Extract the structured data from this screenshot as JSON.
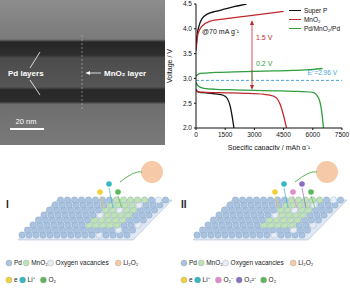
{
  "chart_data": {
    "type": "line",
    "x_label": "Specific capacity / mAh g⁻¹",
    "y_label": "Voltage / V",
    "xlim": [
      0,
      7500
    ],
    "xticks": [
      0,
      1500,
      3000,
      4500,
      6000,
      7500
    ],
    "ylim": [
      2,
      4.5
    ],
    "yticks": [
      {
        "value": 2,
        "label": "2.0"
      },
      2.5,
      {
        "value": 3,
        "label": "3.0"
      },
      3.5,
      {
        "value": 4,
        "label": "4.0"
      },
      4.5
    ],
    "legend": "upper right",
    "series": [
      {
        "name": "Super P",
        "color": "#111111",
        "curves": [
          {
            "x": [
              0,
              50,
              200,
              500,
              1000,
              1400,
              1600,
              1750,
              1850,
              1950
            ],
            "values": [
              2.78,
              2.74,
              2.72,
              2.71,
              2.69,
              2.66,
              2.6,
              2.45,
              2.25,
              2.0
            ]
          },
          {
            "x": [
              0,
              50,
              150,
              300,
              600,
              1000,
              1500,
              2000,
              2600
            ],
            "values": [
              3.6,
              3.85,
              4.05,
              4.2,
              4.3,
              4.35,
              4.4,
              4.45,
              4.5
            ]
          }
        ]
      },
      {
        "name": "MnO₂",
        "color": "#c0282d",
        "curves": [
          {
            "x": [
              0,
              100,
              500,
              1500,
              2500,
              3500,
              4000,
              4300,
              4500,
              4650
            ],
            "values": [
              2.78,
              2.73,
              2.72,
              2.71,
              2.7,
              2.68,
              2.64,
              2.5,
              2.25,
              2.0
            ]
          },
          {
            "x": [
              0,
              100,
              300,
              700,
              1500,
              2500,
              3500,
              4500
            ],
            "values": [
              3.55,
              3.9,
              4.05,
              4.15,
              4.2,
              4.25,
              4.3,
              4.35
            ]
          }
        ]
      },
      {
        "name": "Pd/MnO₂/Pd",
        "color": "#2e9e3e",
        "curves": [
          {
            "x": [
              0,
              100,
              400,
              1000,
              2000,
              3000,
              4000,
              5000,
              6000,
              6300,
              6450,
              6550
            ],
            "values": [
              2.92,
              2.85,
              2.8,
              2.78,
              2.77,
              2.76,
              2.75,
              2.74,
              2.72,
              2.6,
              2.35,
              2.0
            ]
          },
          {
            "x": [
              0,
              200,
              1000,
              2000,
              3000,
              4000,
              5000,
              6000,
              6500
            ],
            "values": [
              3.05,
              3.1,
              3.12,
              3.13,
              3.14,
              3.15,
              3.16,
              3.18,
              3.2
            ]
          }
        ]
      }
    ],
    "reference_lines": [
      {
        "value": 2.96,
        "label": "E°=2.96 V",
        "color": "#4aa3df",
        "line_style": "dashed"
      }
    ],
    "annotations": [
      {
        "text": "@70 mA g⁻¹",
        "color": "#111111"
      },
      {
        "text": "1.5 V",
        "color": "#c0282d"
      },
      {
        "text": "0.2 V",
        "color": "#2e9e3e"
      }
    ]
  },
  "tem_image": {
    "labels": [
      "Pd layers",
      "MnO₂ layer"
    ],
    "scale_bar": "20 nm"
  },
  "schemes": [
    {
      "label": "I",
      "legend": [
        {
          "text": "Pd",
          "color": "#a9c3e0"
        },
        {
          "text": "MnO₂",
          "color": "#bfe3b4"
        },
        {
          "text": "Oxygen vacancies",
          "color": "#e8eef7"
        },
        {
          "text": "Li₂O₂",
          "color": "#f6c9a8"
        },
        {
          "text": "e",
          "color": "#f2d03b"
        },
        {
          "text": "Li⁺",
          "color": "#36b8c2"
        },
        {
          "text": "O₂",
          "color": "#5cb85c"
        }
      ]
    },
    {
      "label": "II",
      "legend": [
        {
          "text": "Pd",
          "color": "#a9c3e0"
        },
        {
          "text": "MnO₂",
          "color": "#bfe3b4"
        },
        {
          "text": "Oxygen vacancies",
          "color": "#e8eef7"
        },
        {
          "text": "Li₂O₂",
          "color": "#f6c9a8"
        },
        {
          "text": "e",
          "color": "#f2d03b"
        },
        {
          "text": "Li⁺",
          "color": "#36b8c2"
        },
        {
          "text": "O₂⁻",
          "color": "#e48acb"
        },
        {
          "text": "O₂²⁻",
          "color": "#8a6fbf"
        },
        {
          "text": "O₂",
          "color": "#5cb85c"
        }
      ]
    }
  ]
}
